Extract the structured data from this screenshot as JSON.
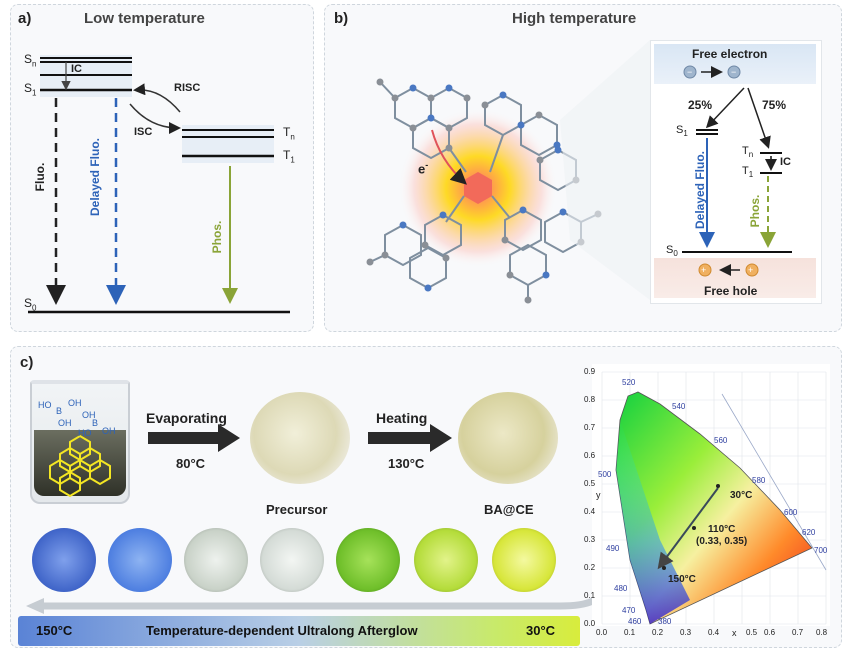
{
  "panel_a": {
    "tag": "a)",
    "title": "Low temperature",
    "levels": {
      "sn": "S",
      "sn_sub": "n",
      "s1": "S",
      "s1_sub": "1",
      "s0": "S",
      "s0_sub": "0",
      "tn": "T",
      "tn_sub": "n",
      "t1": "T",
      "t1_sub": "1"
    },
    "ic": "IC",
    "risc": "RISC",
    "isc": "ISC",
    "fluo": "Fluo.",
    "delayed": "Delayed Fluo.",
    "phos": "Phos."
  },
  "panel_b": {
    "tag": "b)",
    "title": "High temperature",
    "electron": "e",
    "electron_sup": "-",
    "free_electron": "Free electron",
    "free_hole": "Free hole",
    "pct_25": "25%",
    "pct_75": "75%",
    "s1": "S",
    "s1_sub": "1",
    "tn": "T",
    "tn_sub": "n",
    "t1": "T",
    "t1_sub": "1",
    "s0": "S",
    "s0_sub": "0",
    "ic": "IC",
    "delayed": "Delayed Fluo.",
    "phos": "Phos."
  },
  "panel_c": {
    "tag": "c)",
    "step1_label": "Evaporating",
    "step1_temp": "80°C",
    "step2_label": "Heating",
    "step2_temp": "130°C",
    "precursor": "Precursor",
    "product": "BA@CE",
    "beaker_labels": [
      "HO",
      "B",
      "OH",
      "OH",
      "OH",
      "B",
      "OH",
      "HO"
    ],
    "afterglow_colors": [
      "#3f64c8",
      "#4d7ee0",
      "#c9d2c8",
      "#d4dbd6",
      "#6fbf2a",
      "#b4dc3a",
      "#d7e63a"
    ],
    "bar_left": "150°C",
    "bar_text": "Temperature-dependent Ultralong Afterglow",
    "bar_right": "30°C"
  },
  "cie": {
    "y_axis": "y",
    "x_axis": "x",
    "x_ticks": [
      "0.0",
      "0.1",
      "0.2",
      "0.3",
      "0.4",
      "0.5",
      "0.6",
      "0.7",
      "0.8"
    ],
    "y_ticks": [
      "0.0",
      "0.1",
      "0.2",
      "0.3",
      "0.4",
      "0.5",
      "0.6",
      "0.7",
      "0.8",
      "0.9"
    ],
    "wavelengths": [
      "520",
      "540",
      "560",
      "580",
      "600",
      "620",
      "700",
      "500",
      "490",
      "480",
      "470",
      "460",
      "380"
    ],
    "point_30": "30°C",
    "point_110": "110°C",
    "point_110_coord": "(0.33, 0.35)",
    "point_150": "150°C"
  }
}
